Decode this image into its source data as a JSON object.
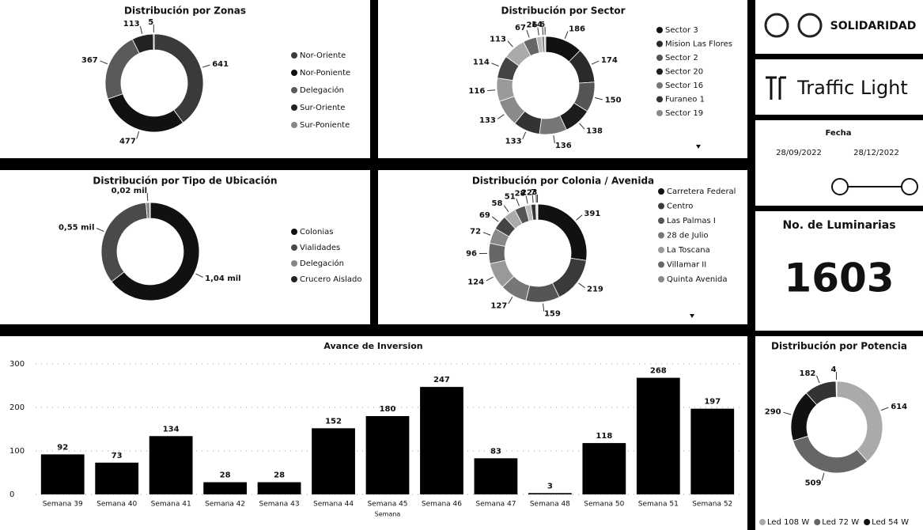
{
  "chart_data": [
    {
      "type": "donut",
      "title": "Distribución por Zonas",
      "categories": [
        "Nor-Oriente",
        "Nor-Poniente",
        "Delegación",
        "Sur-Oriente",
        "Sur-Poniente"
      ],
      "values": [
        641,
        477,
        367,
        113,
        5
      ],
      "colors": [
        "#3a3a3a",
        "#111111",
        "#5a5a5a",
        "#222222",
        "#888888"
      ]
    },
    {
      "type": "donut",
      "title": "Distribución por Sector",
      "categories": [
        "Sector 3",
        "Mision Las Flores",
        "Sector 2",
        "Sector 20",
        "Sector 16",
        "Furaneo 1",
        "Sector 19",
        null,
        null,
        null,
        null,
        null,
        null,
        null
      ],
      "values": [
        186,
        174,
        150,
        138,
        136,
        133,
        133,
        116,
        114,
        113,
        67,
        26,
        14,
        6
      ],
      "colors": [
        "#111111",
        "#2a2a2a",
        "#555555",
        "#1c1c1c",
        "#777777",
        "#333333",
        "#8a8a8a",
        "#999999",
        "#444444",
        "#aaaaaa",
        "#666666",
        "#bbbbbb",
        "#888888",
        "#cccccc"
      ]
    },
    {
      "type": "donut",
      "title": "Distribución por Tipo de Ubicación",
      "categories": [
        "Colonias",
        "Vialidades",
        "Delegación",
        "Crucero Aislado"
      ],
      "values": [
        1040,
        550,
        20,
        3
      ],
      "value_labels": [
        "1,04 mil",
        "0,55 mil",
        "0,02 mil",
        null
      ],
      "colors": [
        "#111111",
        "#4a4a4a",
        "#888888",
        "#222222"
      ]
    },
    {
      "type": "donut",
      "title": "Distribución por Colonia / Avenida",
      "categories": [
        "Carretera Federal",
        "Centro",
        "Las Palmas I",
        "28 de Julio",
        "La Toscana",
        "Villamar II",
        "Quinta Avenida",
        null,
        null,
        null,
        null,
        null,
        null,
        null
      ],
      "values": [
        391,
        219,
        159,
        127,
        124,
        96,
        72,
        69,
        58,
        51,
        28,
        22,
        7,
        3
      ],
      "colors": [
        "#111111",
        "#3a3a3a",
        "#555555",
        "#777777",
        "#999999",
        "#666666",
        "#888888",
        "#444444",
        "#aaaaaa",
        "#555555",
        "#bbbbbb",
        "#333333",
        "#cccccc",
        "#999999"
      ]
    },
    {
      "type": "bar",
      "title": "Avance de Inversion",
      "x_label": "Semana",
      "categories": [
        "Semana 39",
        "Semana 40",
        "Semana 41",
        "Semana 42",
        "Semana 43",
        "Semana 44",
        "Semana 45",
        "Semana 46",
        "Semana 47",
        "Semana 48",
        "Semana 50",
        "Semana 51",
        "Semana 52"
      ],
      "values": [
        92,
        73,
        134,
        28,
        28,
        152,
        180,
        247,
        83,
        3,
        118,
        268,
        197
      ],
      "color": "#000000",
      "ylim": [
        0,
        300
      ],
      "yticks": [
        0,
        100,
        200,
        300
      ],
      "grid": true
    },
    {
      "type": "donut",
      "title": "Distribución por Potencia",
      "categories": [
        "Led 108 W",
        "Led 72 W",
        "Led 54 W",
        null,
        null
      ],
      "values": [
        614,
        509,
        290,
        182,
        4
      ],
      "colors": [
        "#aaaaaa",
        "#666666",
        "#111111",
        "#333333",
        "#888888"
      ]
    }
  ],
  "panels": {
    "logo": "SOLIDARIDAD",
    "brand": "Traffic Light",
    "date_filter": {
      "title": "Fecha",
      "start": "28/09/2022",
      "end": "28/12/2022"
    },
    "card": {
      "title": "No. de Luminarias",
      "value": 1603
    }
  }
}
